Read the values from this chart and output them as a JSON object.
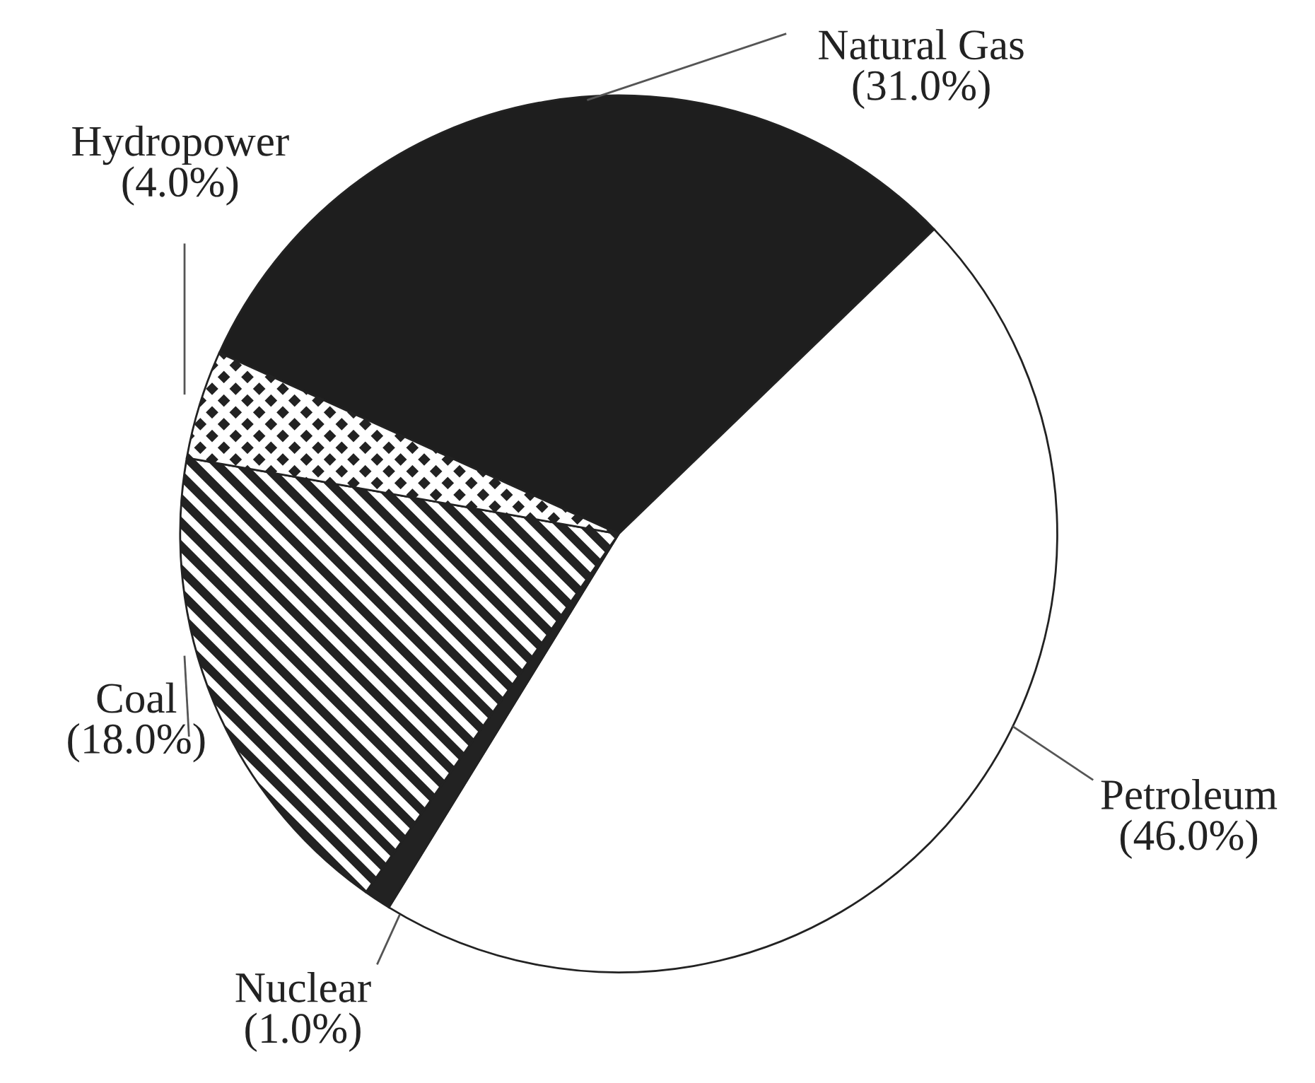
{
  "chart_data": {
    "type": "pie",
    "categories": [
      "Natural Gas",
      "Petroleum",
      "Nuclear",
      "Coal",
      "Hydropower"
    ],
    "values": [
      31.0,
      46.0,
      1.0,
      18.0,
      4.0
    ],
    "value_labels": [
      "(31.0%)",
      "(46.0%)",
      "(1.0%)",
      "(18.0%)",
      "(4.0%)"
    ],
    "colors": [
      "#1e1e1e",
      "#ffffff",
      "#222222",
      "#222222",
      "#222222"
    ],
    "legend": false
  }
}
